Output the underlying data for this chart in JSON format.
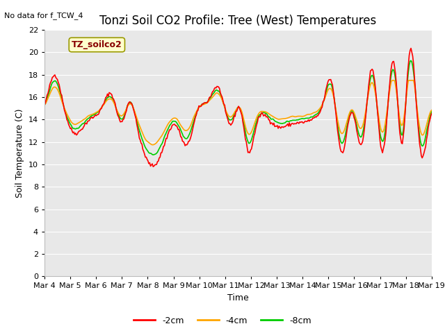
{
  "title": "Tonzi Soil CO2 Profile: Tree (West) Temperatures",
  "no_data_label": "No data for f_TCW_4",
  "station_label": "TZ_soilco2",
  "xlabel": "Time",
  "ylabel": "Soil Temperature (C)",
  "ylim": [
    0,
    22
  ],
  "yticks": [
    0,
    2,
    4,
    6,
    8,
    10,
    12,
    14,
    16,
    18,
    20,
    22
  ],
  "xtick_labels": [
    "Mar 4",
    "Mar 5",
    "Mar 6",
    "Mar 7",
    "Mar 8",
    "Mar 9",
    "Mar 10",
    "Mar 11",
    "Mar 12",
    "Mar 13",
    "Mar 14",
    "Mar 15",
    "Mar 16",
    "Mar 17",
    "Mar 18",
    "Mar 19"
  ],
  "fig_bg_color": "#ffffff",
  "plot_bg_color": "#e8e8e8",
  "grid_color": "#ffffff",
  "line_colors": [
    "#ff0000",
    "#ffa500",
    "#00cc00"
  ],
  "line_labels": [
    "-2cm",
    "-4cm",
    "-8cm"
  ],
  "line_width": 1.2,
  "title_fontsize": 12,
  "label_fontsize": 9,
  "tick_fontsize": 8,
  "legend_fontsize": 9,
  "station_box_color": "#ffffcc",
  "station_box_edge": "#999900",
  "station_text_color": "#880000",
  "n_points": 450
}
